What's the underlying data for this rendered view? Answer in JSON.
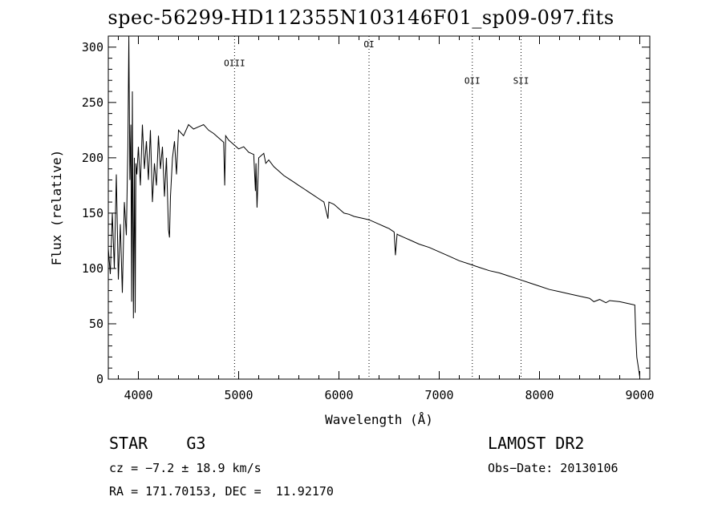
{
  "chart_data": {
    "type": "line",
    "title": "spec-56299-HD112355N103146F01_sp09-097.fits",
    "xlabel": "Wavelength (Å)",
    "ylabel": "Flux (relative)",
    "xlim": [
      3700,
      9100
    ],
    "ylim": [
      0,
      310
    ],
    "xticks": [
      4000,
      5000,
      6000,
      7000,
      8000,
      9000
    ],
    "yticks": [
      0,
      50,
      100,
      150,
      200,
      250,
      300
    ],
    "grid": false,
    "line_color": "#000000",
    "lines": [
      {
        "label": "OIII",
        "x": 4959,
        "label_y": 283
      },
      {
        "label": "OI",
        "x": 6300,
        "label_y": 300
      },
      {
        "label": "OII",
        "x": 7330,
        "label_y": 267
      },
      {
        "label": "SII",
        "x": 7816,
        "label_y": 267
      }
    ],
    "series": [
      {
        "x": [
          3700,
          3720,
          3740,
          3760,
          3780,
          3800,
          3820,
          3840,
          3860,
          3880,
          3895,
          3905,
          3915,
          3925,
          3933,
          3940,
          3950,
          3960,
          3968,
          3975,
          3985,
          4000,
          4020,
          4040,
          4060,
          4080,
          4100,
          4120,
          4140,
          4160,
          4180,
          4200,
          4220,
          4240,
          4260,
          4280,
          4300,
          4310,
          4320,
          4340,
          4360,
          4380,
          4400,
          4450,
          4500,
          4550,
          4600,
          4650,
          4700,
          4750,
          4800,
          4850,
          4861,
          4870,
          4900,
          4950,
          5000,
          5050,
          5100,
          5150,
          5167,
          5173,
          5183,
          5200,
          5250,
          5270,
          5300,
          5350,
          5400,
          5450,
          5500,
          5550,
          5600,
          5650,
          5700,
          5750,
          5800,
          5850,
          5890,
          5900,
          5950,
          6000,
          6050,
          6100,
          6150,
          6200,
          6250,
          6300,
          6350,
          6400,
          6450,
          6500,
          6550,
          6563,
          6580,
          6600,
          6650,
          6700,
          6800,
          6900,
          7000,
          7100,
          7200,
          7300,
          7400,
          7500,
          7600,
          7700,
          7800,
          7900,
          8000,
          8100,
          8200,
          8300,
          8400,
          8500,
          8542,
          8600,
          8662,
          8700,
          8800,
          8900,
          8950,
          8960,
          8970,
          9000
        ],
        "values": [
          118,
          95,
          150,
          100,
          185,
          90,
          140,
          78,
          160,
          130,
          210,
          310,
          180,
          230,
          70,
          260,
          55,
          200,
          60,
          195,
          185,
          210,
          175,
          230,
          190,
          215,
          180,
          225,
          160,
          195,
          175,
          220,
          190,
          210,
          165,
          200,
          135,
          128,
          165,
          200,
          215,
          185,
          225,
          220,
          230,
          226,
          228,
          230,
          225,
          222,
          218,
          214,
          175,
          220,
          216,
          212,
          208,
          210,
          205,
          203,
          170,
          195,
          155,
          200,
          204,
          195,
          198,
          192,
          188,
          184,
          181,
          178,
          175,
          172,
          169,
          166,
          163,
          160,
          145,
          160,
          158,
          154,
          150,
          149,
          147,
          146,
          145,
          144,
          142,
          140,
          138,
          136,
          133,
          112,
          131,
          130,
          128,
          126,
          122,
          119,
          115,
          111,
          107,
          104,
          101,
          98,
          96,
          93,
          90,
          87,
          84,
          81,
          79,
          77,
          75,
          73,
          70,
          72,
          69,
          71,
          70,
          68,
          67,
          40,
          20,
          2
        ]
      }
    ]
  },
  "info": {
    "object": "STAR    G3",
    "survey": "LAMOST DR2",
    "velocity": "cz = −7.2 ± 18.9 km/s",
    "obs_date": "Obs−Date: 20130106",
    "coords": "RA = 171.70153, DEC =  11.92170"
  }
}
